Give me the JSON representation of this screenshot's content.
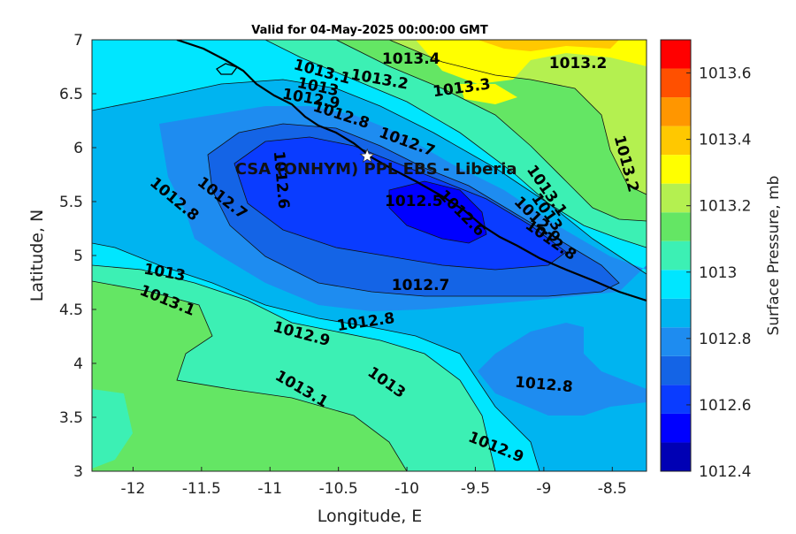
{
  "title": "Valid for 04-May-2025 00:00:00 GMT",
  "chart_data": {
    "type": "heatmap",
    "title": "Valid for 04-May-2025 00:00:00 GMT",
    "xlabel": "Longitude, E",
    "ylabel": "Latitude, N",
    "xlim": [
      -12.3,
      -8.25
    ],
    "ylim": [
      3,
      7
    ],
    "xticks": [
      "-12",
      "-11.5",
      "-11",
      "-10.5",
      "-10",
      "-9.5",
      "-9",
      "-8.5"
    ],
    "xtick_values": [
      -12,
      -11.5,
      -11,
      -10.5,
      -10,
      -9.5,
      -9,
      -8.5
    ],
    "yticks": [
      "3",
      "3.5",
      "4",
      "4.5",
      "5",
      "5.5",
      "6",
      "6.5",
      "7"
    ],
    "ytick_values": [
      3,
      3.5,
      4,
      4.5,
      5,
      5.5,
      6,
      6.5,
      7
    ],
    "colorbar": {
      "label": "Surface Pressure, mb",
      "range": [
        1012.4,
        1013.7
      ],
      "step": 0.1,
      "ticks": [
        "1012.4",
        "1012.6",
        "1012.8",
        "1013",
        "1013.2",
        "1013.4",
        "1013.6"
      ],
      "tick_values": [
        1012.4,
        1012.6,
        1012.8,
        1013.0,
        1013.2,
        1013.4,
        1013.6
      ],
      "colors": [
        "#0000b4",
        "#0000ff",
        "#0a3cff",
        "#1464e6",
        "#1e8cf0",
        "#00b4f0",
        "#00e6ff",
        "#3cf0b4",
        "#64e664",
        "#b4f050",
        "#ffff00",
        "#ffc800",
        "#ff9600",
        "#ff5000",
        "#ff0000"
      ]
    },
    "contour_labels": [
      {
        "text": "1013.4",
        "lon": -9.97,
        "lat": 6.82,
        "angle": 0
      },
      {
        "text": "1013.3",
        "lon": -9.6,
        "lat": 6.55,
        "angle": -8
      },
      {
        "text": "1013.2",
        "lon": -8.75,
        "lat": 6.78,
        "angle": 0
      },
      {
        "text": "1013.2",
        "lon": -10.2,
        "lat": 6.63,
        "angle": 10
      },
      {
        "text": "1013.1",
        "lon": -10.62,
        "lat": 6.7,
        "angle": 15
      },
      {
        "text": "1013",
        "lon": -10.65,
        "lat": 6.56,
        "angle": 12
      },
      {
        "text": "1012.9",
        "lon": -10.7,
        "lat": 6.45,
        "angle": 10
      },
      {
        "text": "1012.8",
        "lon": -10.48,
        "lat": 6.3,
        "angle": 18
      },
      {
        "text": "1012.7",
        "lon": -10.0,
        "lat": 6.05,
        "angle": 20
      },
      {
        "text": "1013.2",
        "lon": -8.4,
        "lat": 5.85,
        "angle": 75
      },
      {
        "text": "1013.1",
        "lon": -8.98,
        "lat": 5.6,
        "angle": 55
      },
      {
        "text": "1013",
        "lon": -8.98,
        "lat": 5.4,
        "angle": 55
      },
      {
        "text": "1012.9",
        "lon": -9.05,
        "lat": 5.33,
        "angle": 45
      },
      {
        "text": "1012.8",
        "lon": -8.95,
        "lat": 5.14,
        "angle": 35
      },
      {
        "text": "1012.6",
        "lon": -9.6,
        "lat": 5.39,
        "angle": 45
      },
      {
        "text": "1012.5",
        "lon": -9.95,
        "lat": 5.5,
        "angle": 0
      },
      {
        "text": "1012.6",
        "lon": -10.92,
        "lat": 5.7,
        "angle": 85
      },
      {
        "text": "1012.7",
        "lon": -11.35,
        "lat": 5.53,
        "angle": 38
      },
      {
        "text": "1012.8",
        "lon": -11.7,
        "lat": 5.52,
        "angle": 40
      },
      {
        "text": "1013",
        "lon": -11.77,
        "lat": 4.84,
        "angle": 10
      },
      {
        "text": "1013.1",
        "lon": -11.75,
        "lat": 4.58,
        "angle": 22
      },
      {
        "text": "1012.7",
        "lon": -9.9,
        "lat": 4.72,
        "angle": 0
      },
      {
        "text": "1012.8",
        "lon": -10.3,
        "lat": 4.38,
        "angle": -8
      },
      {
        "text": "1012.9",
        "lon": -10.77,
        "lat": 4.27,
        "angle": 15
      },
      {
        "text": "1013",
        "lon": -10.15,
        "lat": 3.82,
        "angle": 35
      },
      {
        "text": "1013.1",
        "lon": -10.77,
        "lat": 3.76,
        "angle": 30
      },
      {
        "text": "1012.8",
        "lon": -9.0,
        "lat": 3.8,
        "angle": 5
      },
      {
        "text": "1012.9",
        "lon": -9.35,
        "lat": 3.22,
        "angle": 22
      }
    ],
    "site": {
      "name": "CSA (ONHYM) PPL EBS  - Liberia",
      "lon": -10.29,
      "lat": 5.92
    }
  }
}
